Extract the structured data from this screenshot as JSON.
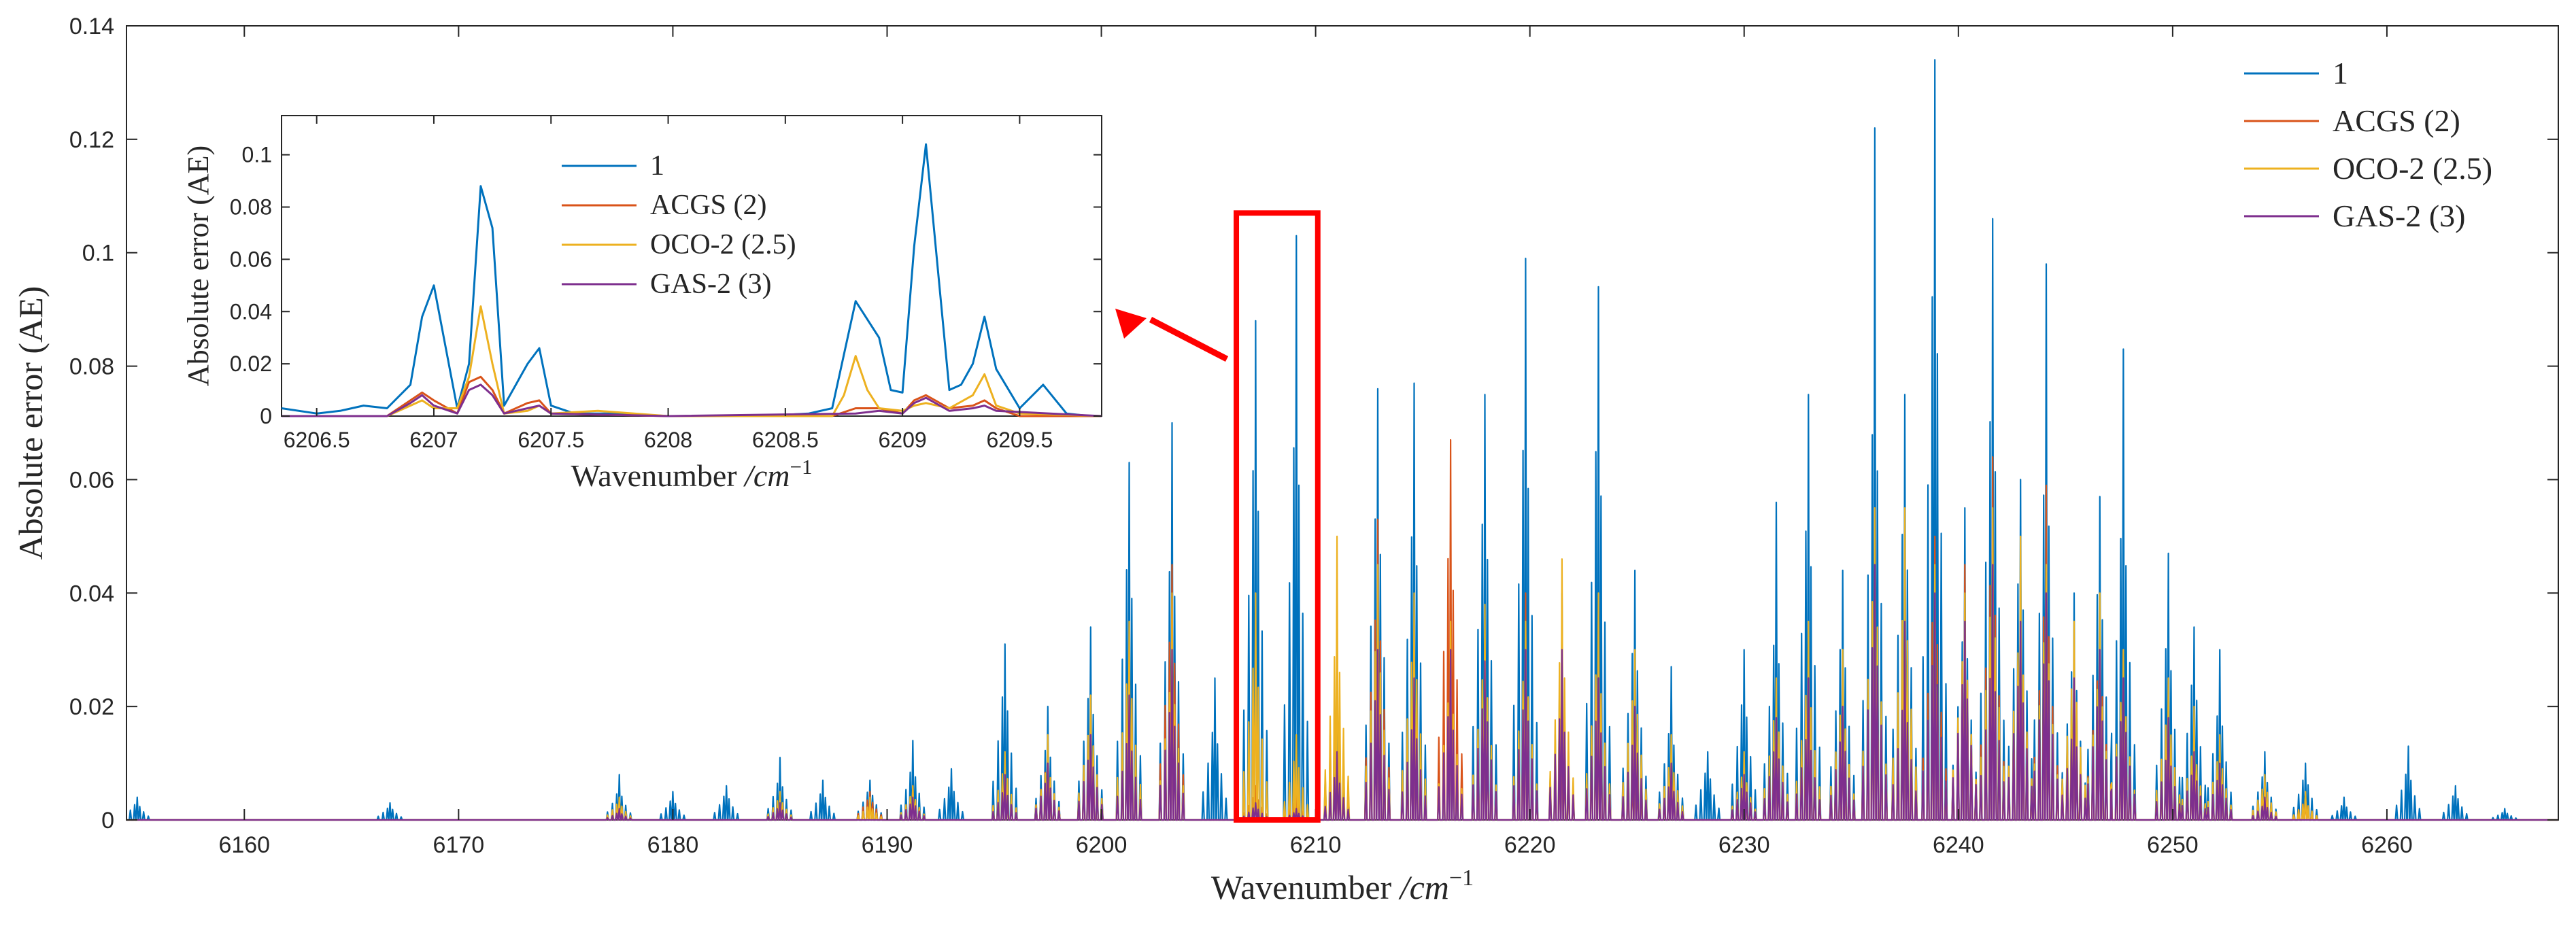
{
  "colors": {
    "series_1": "#0072BD",
    "acgs": "#D95319",
    "oco2": "#EDB120",
    "gas2": "#7E2F8E",
    "highlight": "#FF0000",
    "axis": "#262626"
  },
  "chart_data": [
    {
      "id": "main",
      "type": "line",
      "title": "",
      "xlabel": "Wavenumber",
      "xlabel_unit": "/cm",
      "xlabel_unit_exp": "−1",
      "ylabel": "Absolute error (AE)",
      "xlim": [
        6154.5,
        6268
      ],
      "ylim": [
        0,
        0.14
      ],
      "xticks": [
        6160,
        6170,
        6180,
        6190,
        6200,
        6210,
        6220,
        6230,
        6240,
        6250,
        6260
      ],
      "yticks": [
        0,
        0.02,
        0.04,
        0.06,
        0.08,
        0.1,
        0.12,
        0.14
      ],
      "ytick_labels": [
        "0",
        "0.02",
        "0.04",
        "0.06",
        "0.08",
        "0.1",
        "0.12",
        "0.14"
      ],
      "legend_position": "top-right",
      "highlight_box": {
        "x0": 6206.3,
        "x1": 6210.1,
        "y0": 0,
        "y1": 0.107
      },
      "series": [
        {
          "name": "1",
          "color_key": "series_1",
          "peaks": [
            [
              6155.0,
              0.004
            ],
            [
              6166.8,
              0.003
            ],
            [
              6177.5,
              0.008
            ],
            [
              6180.0,
              0.005
            ],
            [
              6182.5,
              0.006
            ],
            [
              6185.0,
              0.011
            ],
            [
              6187.0,
              0.007
            ],
            [
              6189.2,
              0.007
            ],
            [
              6191.2,
              0.014
            ],
            [
              6193.0,
              0.009
            ],
            [
              6195.5,
              0.031
            ],
            [
              6197.5,
              0.02
            ],
            [
              6199.5,
              0.034
            ],
            [
              6201.3,
              0.063
            ],
            [
              6203.3,
              0.07
            ],
            [
              6205.3,
              0.025
            ],
            [
              6207.2,
              0.088
            ],
            [
              6209.1,
              0.103
            ],
            [
              6211.0,
              0.038
            ],
            [
              6212.9,
              0.076
            ],
            [
              6214.6,
              0.077
            ],
            [
              6216.3,
              0.032
            ],
            [
              6217.9,
              0.075
            ],
            [
              6219.8,
              0.099
            ],
            [
              6221.5,
              0.04
            ],
            [
              6223.2,
              0.094
            ],
            [
              6224.9,
              0.044
            ],
            [
              6226.6,
              0.027
            ],
            [
              6228.3,
              0.012
            ],
            [
              6230.0,
              0.03
            ],
            [
              6231.5,
              0.056
            ],
            [
              6233.0,
              0.075
            ],
            [
              6234.6,
              0.044
            ],
            [
              6236.1,
              0.122
            ],
            [
              6237.5,
              0.075
            ],
            [
              6238.9,
              0.134
            ],
            [
              6240.3,
              0.055
            ],
            [
              6241.6,
              0.106
            ],
            [
              6242.9,
              0.06
            ],
            [
              6244.1,
              0.098
            ],
            [
              6245.4,
              0.04
            ],
            [
              6246.6,
              0.057
            ],
            [
              6247.7,
              0.083
            ],
            [
              6249.8,
              0.047
            ],
            [
              6251.0,
              0.034
            ],
            [
              6252.2,
              0.03
            ],
            [
              6254.3,
              0.012
            ],
            [
              6256.2,
              0.01
            ],
            [
              6258.0,
              0.004
            ],
            [
              6261.0,
              0.013
            ],
            [
              6263.2,
              0.006
            ],
            [
              6265.5,
              0.002
            ]
          ]
        },
        {
          "name": "ACGS (2)",
          "color_key": "acgs",
          "peaks": [
            [
              6177.5,
              0.003
            ],
            [
              6185.0,
              0.004
            ],
            [
              6189.2,
              0.005
            ],
            [
              6191.2,
              0.006
            ],
            [
              6195.5,
              0.01
            ],
            [
              6197.5,
              0.012
            ],
            [
              6199.5,
              0.02
            ],
            [
              6201.3,
              0.03
            ],
            [
              6203.3,
              0.045
            ],
            [
              6207.2,
              0.006
            ],
            [
              6209.1,
              0.005
            ],
            [
              6211.0,
              0.01
            ],
            [
              6212.9,
              0.053
            ],
            [
              6214.6,
              0.03
            ],
            [
              6216.3,
              0.067
            ],
            [
              6217.9,
              0.03
            ],
            [
              6219.8,
              0.04
            ],
            [
              6221.5,
              0.02
            ],
            [
              6223.2,
              0.035
            ],
            [
              6224.9,
              0.015
            ],
            [
              6226.6,
              0.012
            ],
            [
              6230.0,
              0.01
            ],
            [
              6231.5,
              0.02
            ],
            [
              6233.0,
              0.03
            ],
            [
              6234.6,
              0.02
            ],
            [
              6236.1,
              0.055
            ],
            [
              6237.5,
              0.04
            ],
            [
              6238.9,
              0.05
            ],
            [
              6240.3,
              0.045
            ],
            [
              6241.6,
              0.064
            ],
            [
              6242.9,
              0.04
            ],
            [
              6244.1,
              0.059
            ],
            [
              6245.4,
              0.03
            ],
            [
              6246.6,
              0.035
            ],
            [
              6247.7,
              0.03
            ],
            [
              6249.8,
              0.02
            ],
            [
              6251.0,
              0.015
            ],
            [
              6252.2,
              0.013
            ],
            [
              6254.3,
              0.005
            ],
            [
              6256.2,
              0.004
            ]
          ]
        },
        {
          "name": "OCO-2 (2.5)",
          "color_key": "oco2",
          "peaks": [
            [
              6177.5,
              0.004
            ],
            [
              6185.0,
              0.005
            ],
            [
              6189.2,
              0.004
            ],
            [
              6191.2,
              0.006
            ],
            [
              6195.5,
              0.012
            ],
            [
              6197.5,
              0.015
            ],
            [
              6199.5,
              0.022
            ],
            [
              6201.3,
              0.035
            ],
            [
              6203.3,
              0.04
            ],
            [
              6207.2,
              0.04
            ],
            [
              6209.1,
              0.015
            ],
            [
              6211.0,
              0.05
            ],
            [
              6212.9,
              0.045
            ],
            [
              6214.6,
              0.04
            ],
            [
              6216.3,
              0.035
            ],
            [
              6217.9,
              0.038
            ],
            [
              6219.8,
              0.035
            ],
            [
              6221.5,
              0.046
            ],
            [
              6223.2,
              0.04
            ],
            [
              6224.9,
              0.03
            ],
            [
              6226.6,
              0.015
            ],
            [
              6230.0,
              0.012
            ],
            [
              6231.5,
              0.025
            ],
            [
              6233.0,
              0.035
            ],
            [
              6234.6,
              0.03
            ],
            [
              6236.1,
              0.055
            ],
            [
              6237.5,
              0.055
            ],
            [
              6238.9,
              0.045
            ],
            [
              6240.3,
              0.04
            ],
            [
              6241.6,
              0.055
            ],
            [
              6242.9,
              0.05
            ],
            [
              6244.1,
              0.045
            ],
            [
              6245.4,
              0.035
            ],
            [
              6246.6,
              0.04
            ],
            [
              6247.7,
              0.03
            ],
            [
              6249.8,
              0.025
            ],
            [
              6251.0,
              0.02
            ],
            [
              6252.2,
              0.015
            ],
            [
              6254.3,
              0.008
            ],
            [
              6256.2,
              0.005
            ]
          ]
        },
        {
          "name": "GAS-2 (3)",
          "color_key": "gas2",
          "peaks": [
            [
              6177.5,
              0.002
            ],
            [
              6185.0,
              0.003
            ],
            [
              6191.2,
              0.004
            ],
            [
              6195.5,
              0.008
            ],
            [
              6197.5,
              0.01
            ],
            [
              6199.5,
              0.015
            ],
            [
              6201.3,
              0.022
            ],
            [
              6203.3,
              0.03
            ],
            [
              6207.2,
              0.003
            ],
            [
              6209.1,
              0.002
            ],
            [
              6211.0,
              0.012
            ],
            [
              6212.9,
              0.03
            ],
            [
              6214.6,
              0.025
            ],
            [
              6216.3,
              0.03
            ],
            [
              6217.9,
              0.028
            ],
            [
              6219.8,
              0.03
            ],
            [
              6221.5,
              0.03
            ],
            [
              6223.2,
              0.025
            ],
            [
              6224.9,
              0.02
            ],
            [
              6226.6,
              0.01
            ],
            [
              6230.0,
              0.008
            ],
            [
              6231.5,
              0.018
            ],
            [
              6233.0,
              0.025
            ],
            [
              6234.6,
              0.02
            ],
            [
              6236.1,
              0.045
            ],
            [
              6237.5,
              0.035
            ],
            [
              6238.9,
              0.04
            ],
            [
              6240.3,
              0.035
            ],
            [
              6241.6,
              0.045
            ],
            [
              6242.9,
              0.035
            ],
            [
              6244.1,
              0.04
            ],
            [
              6245.4,
              0.025
            ],
            [
              6246.6,
              0.03
            ],
            [
              6247.7,
              0.025
            ],
            [
              6249.8,
              0.018
            ],
            [
              6251.0,
              0.012
            ],
            [
              6252.2,
              0.01
            ],
            [
              6254.3,
              0.004
            ]
          ]
        }
      ]
    },
    {
      "id": "inset",
      "type": "line",
      "title": "",
      "xlabel": "Wavenumber",
      "xlabel_unit": "/cm",
      "xlabel_unit_exp": "−1",
      "ylabel": "Absolute error (AE)",
      "xlim": [
        6206.35,
        6209.85
      ],
      "ylim": [
        0,
        0.115
      ],
      "xticks": [
        6206.5,
        6207,
        6207.5,
        6208,
        6208.5,
        6209,
        6209.5
      ],
      "xtick_labels": [
        "6206.5",
        "6207",
        "6207.5",
        "6208",
        "6208.5",
        "6209",
        "6209.5"
      ],
      "yticks": [
        0,
        0.02,
        0.04,
        0.06,
        0.08,
        0.1
      ],
      "ytick_labels": [
        "0",
        "0.02",
        "0.04",
        "0.06",
        "0.08",
        "0.1"
      ],
      "legend_position": "top-center",
      "series": [
        {
          "name": "1",
          "color_key": "series_1",
          "x": [
            6206.35,
            6206.5,
            6206.6,
            6206.7,
            6206.8,
            6206.9,
            6206.95,
            6207.0,
            6207.1,
            6207.15,
            6207.2,
            6207.25,
            6207.3,
            6207.4,
            6207.45,
            6207.5,
            6207.6,
            6207.8,
            6208.0,
            6208.2,
            6208.4,
            6208.6,
            6208.7,
            6208.8,
            6208.9,
            6208.95,
            6209.0,
            6209.05,
            6209.1,
            6209.2,
            6209.25,
            6209.3,
            6209.35,
            6209.4,
            6209.5,
            6209.6,
            6209.7,
            6209.8
          ],
          "y": [
            0.003,
            0.001,
            0.002,
            0.004,
            0.003,
            0.012,
            0.038,
            0.05,
            0.003,
            0.02,
            0.088,
            0.072,
            0.004,
            0.02,
            0.026,
            0.004,
            0.001,
            0.001,
            0.0,
            0.0,
            0.0,
            0.001,
            0.003,
            0.044,
            0.03,
            0.01,
            0.009,
            0.065,
            0.104,
            0.01,
            0.012,
            0.02,
            0.038,
            0.018,
            0.003,
            0.012,
            0.001,
            0.0
          ]
        },
        {
          "name": "ACGS (2)",
          "color_key": "acgs",
          "x": [
            6206.35,
            6206.8,
            6206.9,
            6206.95,
            6207.0,
            6207.1,
            6207.15,
            6207.2,
            6207.25,
            6207.3,
            6207.4,
            6207.45,
            6207.5,
            6208.0,
            6208.7,
            6208.8,
            6208.9,
            6209.0,
            6209.05,
            6209.1,
            6209.2,
            6209.3,
            6209.35,
            6209.4,
            6209.5,
            6209.85
          ],
          "y": [
            0.0,
            0.0,
            0.006,
            0.009,
            0.006,
            0.001,
            0.013,
            0.015,
            0.01,
            0.001,
            0.005,
            0.006,
            0.001,
            0.0,
            0.0,
            0.003,
            0.003,
            0.001,
            0.006,
            0.008,
            0.003,
            0.004,
            0.006,
            0.003,
            0.0,
            0.0
          ]
        },
        {
          "name": "OCO-2 (2.5)",
          "color_key": "oco2",
          "x": [
            6206.35,
            6206.8,
            6206.9,
            6206.95,
            6207.0,
            6207.1,
            6207.15,
            6207.2,
            6207.25,
            6207.3,
            6207.4,
            6207.45,
            6207.5,
            6207.7,
            6208.0,
            6208.7,
            6208.75,
            6208.8,
            6208.85,
            6208.9,
            6209.0,
            6209.05,
            6209.1,
            6209.2,
            6209.3,
            6209.35,
            6209.4,
            6209.5,
            6209.85
          ],
          "y": [
            0.0,
            0.0,
            0.004,
            0.006,
            0.003,
            0.003,
            0.015,
            0.042,
            0.02,
            0.001,
            0.002,
            0.004,
            0.001,
            0.002,
            0.0,
            0.0,
            0.008,
            0.023,
            0.01,
            0.003,
            0.002,
            0.004,
            0.005,
            0.003,
            0.008,
            0.016,
            0.004,
            0.001,
            0.0
          ]
        },
        {
          "name": "GAS-2 (3)",
          "color_key": "gas2",
          "x": [
            6206.35,
            6206.8,
            6206.9,
            6206.95,
            6207.0,
            6207.1,
            6207.15,
            6207.2,
            6207.25,
            6207.3,
            6207.4,
            6207.45,
            6207.5,
            6208.0,
            6208.8,
            6208.9,
            6209.0,
            6209.05,
            6209.1,
            6209.2,
            6209.3,
            6209.35,
            6209.4,
            6209.85
          ],
          "y": [
            0.0,
            0.0,
            0.005,
            0.008,
            0.004,
            0.001,
            0.01,
            0.012,
            0.008,
            0.001,
            0.003,
            0.004,
            0.001,
            0.0,
            0.001,
            0.002,
            0.001,
            0.005,
            0.007,
            0.002,
            0.003,
            0.004,
            0.002,
            0.0
          ]
        }
      ]
    }
  ]
}
